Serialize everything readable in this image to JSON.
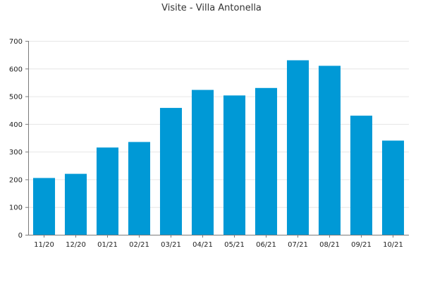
{
  "chart_data": {
    "type": "bar",
    "title": "Visite - Villa Antonella",
    "xlabel": "",
    "ylabel": "",
    "categories": [
      "11/20",
      "12/20",
      "01/21",
      "02/21",
      "03/21",
      "04/21",
      "05/21",
      "06/21",
      "07/21",
      "08/21",
      "09/21",
      "10/21"
    ],
    "values": [
      205,
      220,
      315,
      335,
      458,
      523,
      503,
      530,
      630,
      610,
      430,
      340
    ],
    "ylim": [
      0,
      700
    ],
    "yticks": [
      0,
      100,
      200,
      300,
      400,
      500,
      600,
      700
    ],
    "grid": true,
    "legend": "none",
    "colors": {
      "bar": "#0099d6",
      "grid": "#e6e6e6",
      "axis": "#7a7a7a"
    }
  }
}
